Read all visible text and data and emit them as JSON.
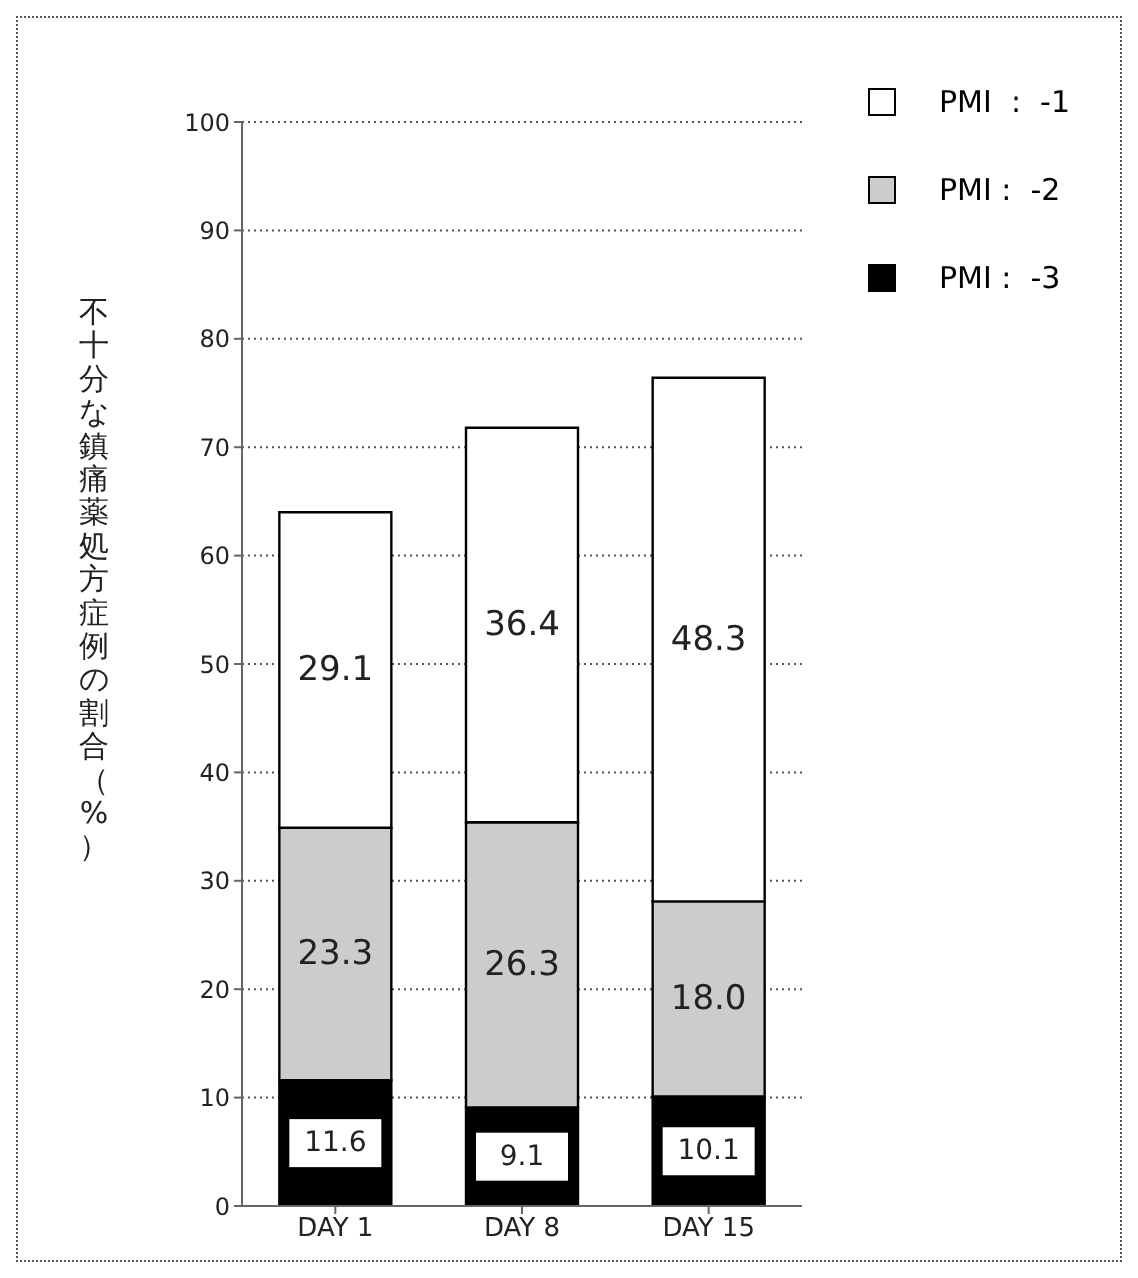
{
  "chart_data": {
    "type": "bar",
    "stacked": true,
    "ylabel": "不十分な鎮痛薬処方症例の割合（%）",
    "categories": [
      "DAY 1",
      "DAY 8",
      "DAY 15"
    ],
    "series": [
      {
        "name": "PMI :  -3",
        "color": "#000000",
        "values": [
          11.6,
          9.1,
          10.1
        ],
        "value_labels": [
          "11.6",
          "9.1",
          "10.1"
        ]
      },
      {
        "name": "PMI :  -2",
        "color": "#cccccc",
        "values": [
          23.3,
          26.3,
          18.0
        ],
        "value_labels": [
          "23.3",
          "26.3",
          "18.0"
        ]
      },
      {
        "name": "PMI  :  -1",
        "color": "#ffffff",
        "values": [
          29.1,
          36.4,
          48.3
        ],
        "value_labels": [
          "29.1",
          "36.4",
          "48.3"
        ]
      }
    ],
    "ylim": [
      0,
      100
    ],
    "yticks": [
      0,
      10,
      20,
      30,
      40,
      50,
      60,
      70,
      80,
      90,
      100
    ],
    "grid": "y",
    "legend": "top right"
  }
}
